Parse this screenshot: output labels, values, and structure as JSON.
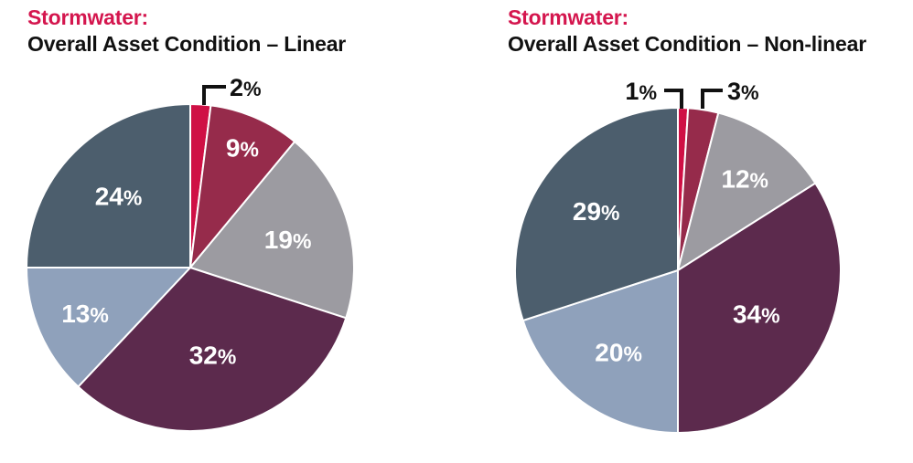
{
  "palette": {
    "accent_crimson": "#d4164e",
    "slice_crimson": "#cf1045",
    "slice_maroon": "#962b4b",
    "slice_gray": "#9c9ba1",
    "slice_plum": "#5c2a4d",
    "slice_bluegray": "#8fa1bb",
    "slice_slate": "#4c5e6d",
    "text_black": "#111111",
    "label_white": "#ffffff",
    "background": "#ffffff"
  },
  "chart_data": [
    {
      "type": "pie",
      "title": {
        "accent": "Stormwater:",
        "main": "Overall Asset Condition – Linear"
      },
      "start_angle": "12-oclock",
      "direction": "clockwise",
      "legend": "none",
      "unit": "%",
      "slices": [
        {
          "label": "2%",
          "value": 2,
          "color": "#cf1045",
          "placement": "callout-right"
        },
        {
          "label": "9%",
          "value": 9,
          "color": "#962b4b",
          "placement": "inside"
        },
        {
          "label": "19%",
          "value": 19,
          "color": "#9c9ba1",
          "placement": "inside"
        },
        {
          "label": "32%",
          "value": 32,
          "color": "#5c2a4d",
          "placement": "inside"
        },
        {
          "label": "13%",
          "value": 13,
          "color": "#8fa1bb",
          "placement": "inside"
        },
        {
          "label": "24%",
          "value": 24,
          "color": "#4c5e6d",
          "placement": "inside"
        }
      ]
    },
    {
      "type": "pie",
      "title": {
        "accent": "Stormwater:",
        "main": "Overall Asset Condition – Non-linear"
      },
      "start_angle": "12-oclock",
      "direction": "clockwise",
      "legend": "none",
      "unit": "%",
      "slices": [
        {
          "label": "1%",
          "value": 1,
          "color": "#cf1045",
          "placement": "callout-left"
        },
        {
          "label": "3%",
          "value": 3,
          "color": "#962b4b",
          "placement": "callout-right"
        },
        {
          "label": "12%",
          "value": 12,
          "color": "#9c9ba1",
          "placement": "inside"
        },
        {
          "label": "34%",
          "value": 34,
          "color": "#5c2a4d",
          "placement": "inside"
        },
        {
          "label": "20%",
          "value": 20,
          "color": "#8fa1bb",
          "placement": "inside"
        },
        {
          "label": "29%",
          "value": 29,
          "color": "#4c5e6d",
          "placement": "inside"
        }
      ]
    }
  ]
}
